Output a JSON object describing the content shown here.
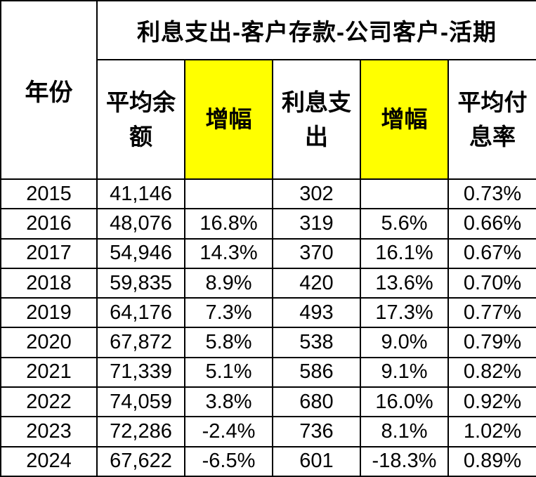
{
  "chart_data": {
    "type": "table",
    "title": "利息支出-客户存款-公司客户-活期",
    "columns": [
      "年份",
      "平均余额",
      "增幅",
      "利息支出",
      "增幅",
      "平均付息率"
    ],
    "rows": [
      [
        "2015",
        "41,146",
        "",
        "302",
        "",
        "0.73%"
      ],
      [
        "2016",
        "48,076",
        "16.8%",
        "319",
        "5.6%",
        "0.66%"
      ],
      [
        "2017",
        "54,946",
        "14.3%",
        "370",
        "16.1%",
        "0.67%"
      ],
      [
        "2018",
        "59,835",
        "8.9%",
        "420",
        "13.6%",
        "0.70%"
      ],
      [
        "2019",
        "64,176",
        "7.3%",
        "493",
        "17.3%",
        "0.77%"
      ],
      [
        "2020",
        "67,872",
        "5.8%",
        "538",
        "9.0%",
        "0.79%"
      ],
      [
        "2021",
        "71,339",
        "5.1%",
        "586",
        "9.1%",
        "0.82%"
      ],
      [
        "2022",
        "74,059",
        "3.8%",
        "680",
        "16.0%",
        "0.92%"
      ],
      [
        "2023",
        "72,286",
        "-2.4%",
        "736",
        "8.1%",
        "1.02%"
      ],
      [
        "2024",
        "67,622",
        "-6.5%",
        "601",
        "-18.3%",
        "0.89%"
      ]
    ],
    "header": {
      "year": "年份",
      "avg_balance": "平均余额",
      "balance_growth": "增幅",
      "interest_expense": "利息支出",
      "expense_growth": "增幅",
      "avg_rate": "平均付息率"
    },
    "highlighted_columns": [
      "增幅",
      "增幅"
    ],
    "layout_hints": {
      "grid": "on",
      "title_position": "top, spanning data columns"
    }
  },
  "colors": {
    "highlight": "#ffff00",
    "border": "#000000",
    "text": "#000000",
    "background": "#ffffff"
  }
}
